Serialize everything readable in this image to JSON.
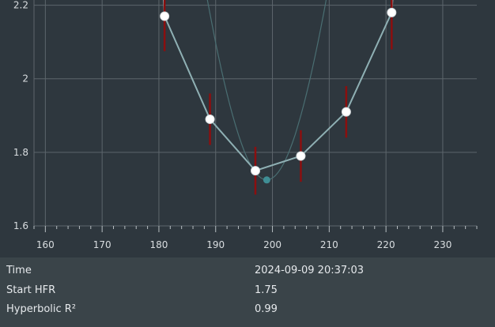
{
  "chart_data": {
    "type": "scatter",
    "title": "",
    "xlabel": "",
    "ylabel": "",
    "xlim": [
      158,
      236
    ],
    "ylim": [
      1.6,
      2.3
    ],
    "x_ticks": [
      160,
      170,
      180,
      190,
      200,
      210,
      220,
      230
    ],
    "y_ticks": [
      1.6,
      1.8,
      2.0,
      2.2
    ],
    "y_tick_labels": [
      "1.6",
      "1.8",
      "2",
      "2.2"
    ],
    "grid": true,
    "points": [
      {
        "x": 181,
        "y": 2.17,
        "err": 0.095
      },
      {
        "x": 189,
        "y": 1.89,
        "err": 0.07
      },
      {
        "x": 197,
        "y": 1.75,
        "err": 0.065
      },
      {
        "x": 205,
        "y": 1.79,
        "err": 0.07
      },
      {
        "x": 213,
        "y": 1.91,
        "err": 0.07
      },
      {
        "x": 221,
        "y": 2.18,
        "err": 0.1
      }
    ],
    "hyperbolic_fit": {
      "a": 1.725,
      "b": 13.0,
      "x0": 199.0
    },
    "fit_minimum": {
      "x": 199,
      "y": 1.725
    },
    "colors": {
      "background": "#2e373e",
      "grid": "#5d666c",
      "point": "#ffffff",
      "error_bar": "#8b0f0f",
      "line": "#8fb0b4",
      "fit_curve": "#4a6e72",
      "minimum_marker": "#3f8e95"
    }
  },
  "info": {
    "rows": [
      {
        "label": "Time",
        "value": "2024-09-09 20:37:03"
      },
      {
        "label": "Start HFR",
        "value": "1.75"
      },
      {
        "label": "Hyperbolic R²",
        "value": "0.99"
      }
    ]
  }
}
